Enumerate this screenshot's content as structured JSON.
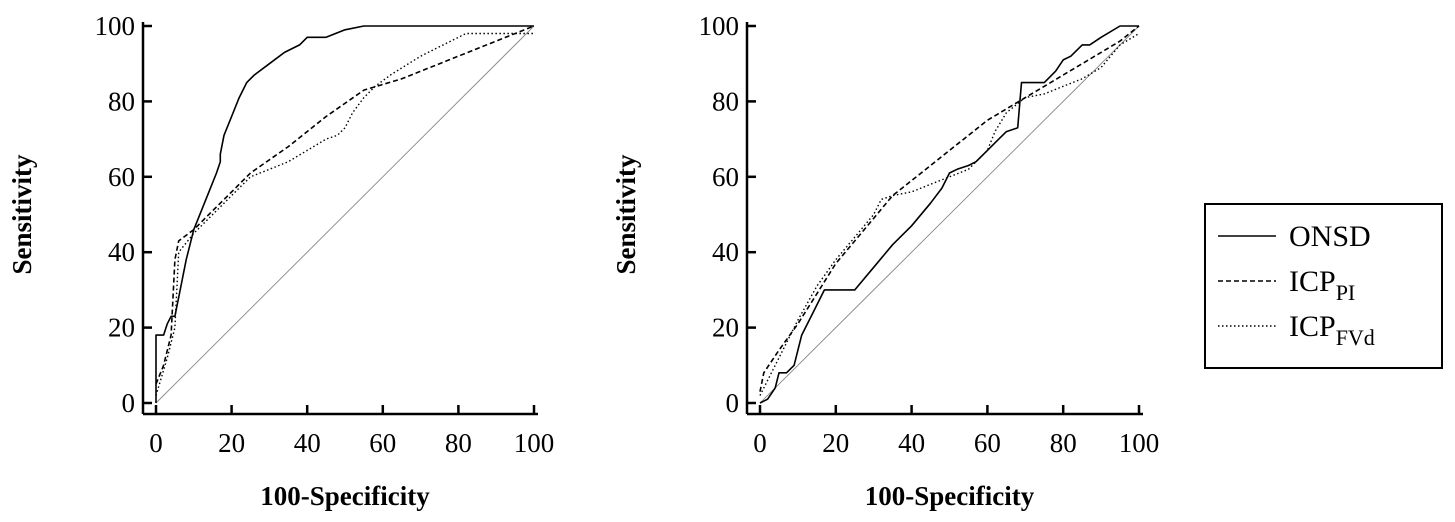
{
  "chart_data": [
    {
      "type": "line",
      "xlabel": "100-Specificity",
      "ylabel": "Sensitivity",
      "xlim": [
        0,
        100
      ],
      "ylim": [
        0,
        100
      ],
      "x_ticks": [
        "0",
        "20",
        "40",
        "60",
        "80",
        "100"
      ],
      "y_ticks": [
        "0",
        "20",
        "40",
        "60",
        "80",
        "100"
      ],
      "reference_line": {
        "x": [
          0,
          100
        ],
        "y": [
          0,
          100
        ]
      },
      "series": [
        {
          "name": "ONSD",
          "style": "solid",
          "x": [
            0,
            0,
            1,
            2,
            3,
            4,
            5,
            6,
            8,
            10,
            12,
            14,
            16,
            17,
            17,
            18,
            20,
            22,
            24,
            26,
            30,
            34,
            38,
            40,
            42,
            45,
            50,
            55,
            60,
            70,
            80,
            90,
            100
          ],
          "y": [
            0,
            18,
            18,
            18,
            21,
            23,
            23,
            28,
            38,
            46,
            51,
            56,
            61,
            64,
            66,
            71,
            76,
            81,
            85,
            87,
            90,
            93,
            95,
            97,
            97,
            97,
            99,
            100,
            100,
            100,
            100,
            100,
            100
          ]
        },
        {
          "name": "ICP_PI",
          "style": "dashed",
          "x": [
            0,
            2,
            4,
            5,
            6,
            10,
            15,
            20,
            25,
            35,
            45,
            55,
            65,
            75,
            85,
            100
          ],
          "y": [
            5,
            10,
            18,
            38,
            43,
            46,
            51,
            56,
            61,
            68,
            76,
            83,
            86,
            90,
            94,
            100
          ]
        },
        {
          "name": "ICP_FVd",
          "style": "dotted",
          "x": [
            0,
            3,
            5,
            6,
            10,
            15,
            20,
            25,
            30,
            35,
            40,
            45,
            48,
            50,
            52,
            55,
            58,
            62,
            70,
            80,
            82,
            100
          ],
          "y": [
            2,
            12,
            20,
            40,
            45,
            50,
            55,
            60,
            62,
            64,
            67,
            70,
            71,
            73,
            77,
            81,
            84,
            87,
            92,
            97,
            98,
            98
          ]
        }
      ]
    },
    {
      "type": "line",
      "xlabel": "100-Specificity",
      "ylabel": "Sensitivity",
      "xlim": [
        0,
        100
      ],
      "ylim": [
        0,
        100
      ],
      "x_ticks": [
        "0",
        "20",
        "40",
        "60",
        "80",
        "100"
      ],
      "y_ticks": [
        "0",
        "20",
        "40",
        "60",
        "80",
        "100"
      ],
      "reference_line": {
        "x": [
          0,
          100
        ],
        "y": [
          0,
          100
        ]
      },
      "series": [
        {
          "name": "ONSD",
          "style": "solid",
          "x": [
            0,
            2,
            4,
            5,
            7,
            8,
            9,
            10,
            11,
            14,
            17,
            20,
            25,
            30,
            35,
            40,
            45,
            48,
            50,
            52,
            55,
            57,
            60,
            63,
            65,
            68,
            69,
            70,
            72,
            75,
            78,
            80,
            82,
            85,
            87,
            90,
            95,
            100
          ],
          "y": [
            0,
            1,
            4,
            8,
            8,
            9,
            10,
            14,
            18,
            24,
            30,
            30,
            30,
            36,
            42,
            47,
            53,
            57,
            61,
            62,
            63,
            64,
            67,
            70,
            72,
            73,
            85,
            85,
            85,
            85,
            88,
            91,
            92,
            95,
            95,
            97,
            100,
            100
          ]
        },
        {
          "name": "ICP_PI",
          "style": "dashed",
          "x": [
            0,
            1,
            3,
            5,
            10,
            15,
            20,
            25,
            30,
            35,
            40,
            45,
            50,
            55,
            60,
            65,
            70,
            75,
            80,
            85,
            90,
            95,
            100
          ],
          "y": [
            3,
            8,
            11,
            14,
            21,
            29,
            37,
            43,
            49,
            55,
            59,
            63,
            67,
            71,
            75,
            78,
            81,
            84,
            87,
            90,
            93,
            96,
            100
          ]
        },
        {
          "name": "ICP_FVd",
          "style": "dotted",
          "x": [
            0,
            5,
            10,
            15,
            20,
            25,
            30,
            32,
            35,
            40,
            45,
            50,
            55,
            60,
            62,
            65,
            70,
            75,
            80,
            85,
            90,
            95,
            100
          ],
          "y": [
            2,
            12,
            22,
            31,
            38,
            44,
            50,
            54,
            55,
            56,
            58,
            60,
            62,
            67,
            72,
            77,
            81,
            82,
            84,
            86,
            89,
            95,
            98
          ]
        }
      ]
    }
  ],
  "legend": {
    "items": [
      {
        "base": "ONSD",
        "sub": "",
        "style": "solid"
      },
      {
        "base": "ICP",
        "sub": "PI",
        "style": "dashed"
      },
      {
        "base": "ICP",
        "sub": "FVd",
        "style": "dotted"
      }
    ]
  }
}
